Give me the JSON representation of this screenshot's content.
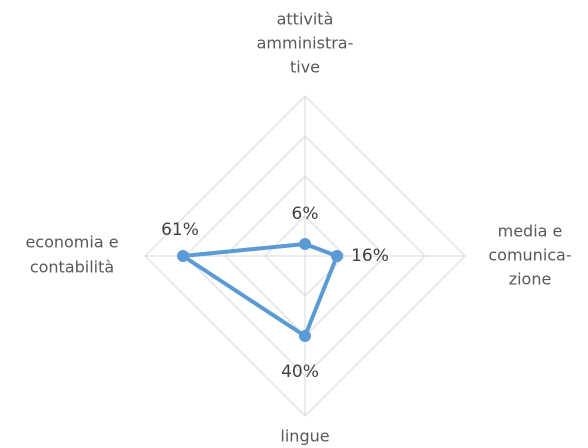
{
  "chart_data": {
    "type": "radar",
    "categories": [
      [
        "attività",
        "amministra-",
        "tive"
      ],
      [
        "media e",
        "comunica-",
        "zione"
      ],
      [
        "lingue"
      ],
      [
        "economia e",
        "contabilità"
      ]
    ],
    "values": [
      6,
      16,
      40,
      61
    ],
    "value_labels": [
      "6%",
      "16%",
      "40%",
      "61%"
    ],
    "color": "#5b9bd5",
    "ylim": [
      0,
      80
    ],
    "yticks": [
      20,
      40,
      60,
      80
    ],
    "grid": true
  }
}
